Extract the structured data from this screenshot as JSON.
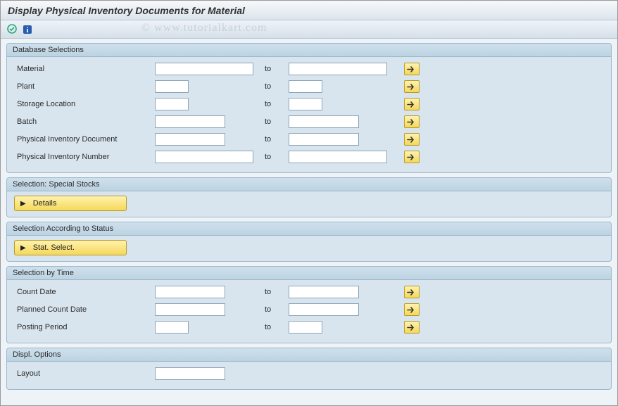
{
  "header": {
    "title": "Display Physical Inventory Documents for Material"
  },
  "watermark": "© www.tutorialkart.com",
  "groups": {
    "db": {
      "title": "Database Selections",
      "rows": [
        {
          "label": "Material",
          "from": "",
          "to_lbl": "to",
          "to": "",
          "from_w": "f-wide",
          "to_w": "f-wide"
        },
        {
          "label": "Plant",
          "from": "",
          "to_lbl": "to",
          "to": "",
          "from_w": "f-sm",
          "to_w": "f-sm"
        },
        {
          "label": "Storage Location",
          "from": "",
          "to_lbl": "to",
          "to": "",
          "from_w": "f-sm",
          "to_w": "f-sm"
        },
        {
          "label": "Batch",
          "from": "",
          "to_lbl": "to",
          "to": "",
          "from_w": "f-med",
          "to_w": "f-med"
        },
        {
          "label": "Physical Inventory Document",
          "from": "",
          "to_lbl": "to",
          "to": "",
          "from_w": "f-med",
          "to_w": "f-med"
        },
        {
          "label": "Physical Inventory Number",
          "from": "",
          "to_lbl": "to",
          "to": "",
          "from_w": "f-wide",
          "to_w": "f-wide"
        }
      ]
    },
    "special": {
      "title": "Selection: Special Stocks",
      "button": "Details"
    },
    "status": {
      "title": "Selection According to Status",
      "button": "Stat. Select."
    },
    "time": {
      "title": "Selection by Time",
      "rows": [
        {
          "label": "Count Date",
          "from": "",
          "to_lbl": "to",
          "to": "",
          "from_w": "f-med",
          "to_w": "f-med"
        },
        {
          "label": "Planned Count Date",
          "from": "",
          "to_lbl": "to",
          "to": "",
          "from_w": "f-med",
          "to_w": "f-med"
        },
        {
          "label": "Posting Period",
          "from": "",
          "to_lbl": "to",
          "to": "",
          "from_w": "f-sm",
          "to_w": "f-sm"
        }
      ]
    },
    "displ": {
      "title": "Displ. Options",
      "rows": [
        {
          "label": "Layout",
          "from": "",
          "from_w": "f-med"
        }
      ]
    }
  },
  "icons": {
    "execute": "⊕",
    "info": "ℹ",
    "arrow": "⇨",
    "tri": "▶"
  },
  "colors": {
    "group_border": "#9db6c9",
    "group_bg": "#d9e5ee",
    "btn_bg_top": "#fff2b0",
    "btn_bg_bot": "#f5d858",
    "btn_border": "#b59a2a"
  }
}
